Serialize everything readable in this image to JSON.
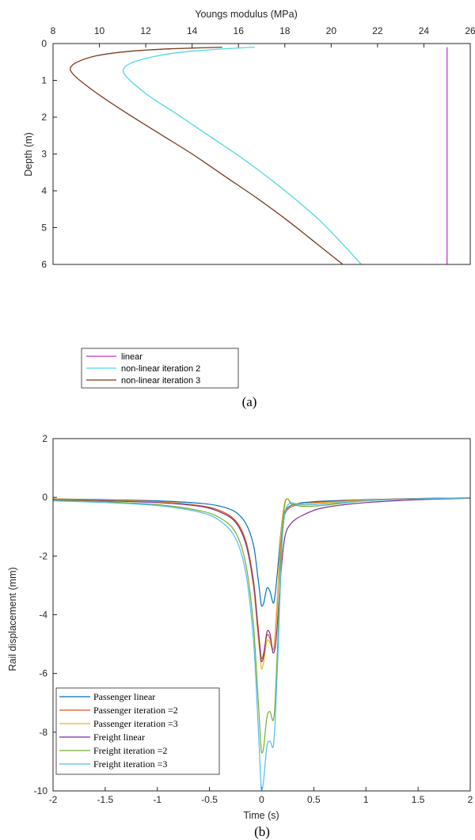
{
  "colors": {
    "linear": "#cc33cc",
    "iter2": "#4dd9e0",
    "iter3": "#7a3a1c",
    "passenger_linear": "#0072bd",
    "passenger_iter2": "#d95319",
    "passenger_iter3": "#edb120",
    "freight_linear": "#7e2f8e",
    "freight_iter2": "#77ac30",
    "freight_iter3": "#4dbeee"
  },
  "chart_data": [
    {
      "type": "line",
      "caption": "(a)",
      "title": "",
      "xlabel": "Youngs modulus (MPa)",
      "ylabel": "Depth (m)",
      "xlim": [
        8,
        26
      ],
      "ylim": [
        6,
        0
      ],
      "x_axis_position": "top",
      "y_axis_reversed": true,
      "x_ticks": [
        "8",
        "10",
        "12",
        "14",
        "16",
        "18",
        "20",
        "22",
        "24",
        "26"
      ],
      "y_ticks": [
        "0",
        "1",
        "2",
        "3",
        "4",
        "5",
        "6"
      ],
      "grid": false,
      "legend_position": "bottom-left",
      "series": [
        {
          "name": "linear",
          "color_key": "linear",
          "points": [
            [
              25,
              0.1
            ],
            [
              25,
              6.0
            ]
          ]
        },
        {
          "name": "non-linear iteration 2",
          "color_key": "iter2",
          "points": [
            [
              16.7,
              0.1
            ],
            [
              15.2,
              0.15
            ],
            [
              13.6,
              0.23
            ],
            [
              12.3,
              0.36
            ],
            [
              11.4,
              0.52
            ],
            [
              11.05,
              0.68
            ],
            [
              11.1,
              0.85
            ],
            [
              11.5,
              1.1
            ],
            [
              12.2,
              1.45
            ],
            [
              13.3,
              1.9
            ],
            [
              14.6,
              2.45
            ],
            [
              15.9,
              3.0
            ],
            [
              17.2,
              3.6
            ],
            [
              18.4,
              4.2
            ],
            [
              19.5,
              4.8
            ],
            [
              20.5,
              5.45
            ],
            [
              21.3,
              6.0
            ]
          ]
        },
        {
          "name": "non-linear iteration 3",
          "color_key": "iter3",
          "points": [
            [
              15.3,
              0.1
            ],
            [
              13.2,
              0.14
            ],
            [
              11.3,
              0.21
            ],
            [
              9.9,
              0.33
            ],
            [
              9.05,
              0.5
            ],
            [
              8.75,
              0.66
            ],
            [
              8.85,
              0.82
            ],
            [
              9.25,
              1.05
            ],
            [
              10.0,
              1.4
            ],
            [
              11.2,
              1.9
            ],
            [
              12.6,
              2.45
            ],
            [
              14.0,
              3.0
            ],
            [
              15.4,
              3.6
            ],
            [
              16.8,
              4.2
            ],
            [
              18.1,
              4.8
            ],
            [
              19.4,
              5.45
            ],
            [
              20.5,
              6.0
            ]
          ]
        }
      ]
    },
    {
      "type": "line",
      "caption": "(b)",
      "title": "",
      "xlabel": "Time (s)",
      "ylabel": "Rail displacement (mm)",
      "xlim": [
        -2,
        2
      ],
      "ylim": [
        -10,
        2
      ],
      "x_ticks": [
        "-2",
        "-1.5",
        "-1",
        "-0.5",
        "0",
        "0.5",
        "1",
        "1.5",
        "2"
      ],
      "y_ticks": [
        "2",
        "0",
        "-2",
        "-4",
        "-6",
        "-8",
        "-10"
      ],
      "grid": false,
      "legend_position": "bottom-left",
      "series": [
        {
          "name": "Passenger linear",
          "color_key": "passenger_linear",
          "points": [
            [
              -2,
              -0.05
            ],
            [
              -1.5,
              -0.08
            ],
            [
              -1,
              -0.12
            ],
            [
              -0.6,
              -0.2
            ],
            [
              -0.4,
              -0.3
            ],
            [
              -0.25,
              -0.5
            ],
            [
              -0.15,
              -0.9
            ],
            [
              -0.08,
              -1.6
            ],
            [
              -0.04,
              -2.6
            ],
            [
              -0.01,
              -3.5
            ],
            [
              0.0,
              -3.7
            ],
            [
              0.02,
              -3.6
            ],
            [
              0.05,
              -3.1
            ],
            [
              0.08,
              -3.2
            ],
            [
              0.11,
              -3.6
            ],
            [
              0.13,
              -3.3
            ],
            [
              0.16,
              -2.2
            ],
            [
              0.19,
              -1.0
            ],
            [
              0.22,
              -0.5
            ],
            [
              0.3,
              -0.25
            ],
            [
              0.5,
              -0.15
            ],
            [
              1,
              -0.08
            ],
            [
              1.5,
              -0.04
            ],
            [
              2,
              -0.02
            ]
          ]
        },
        {
          "name": "Passenger iteration =2",
          "color_key": "passenger_iter2",
          "points": [
            [
              -2,
              -0.05
            ],
            [
              -1.5,
              -0.1
            ],
            [
              -1,
              -0.15
            ],
            [
              -0.6,
              -0.28
            ],
            [
              -0.4,
              -0.45
            ],
            [
              -0.25,
              -0.8
            ],
            [
              -0.15,
              -1.5
            ],
            [
              -0.08,
              -2.8
            ],
            [
              -0.04,
              -4.2
            ],
            [
              -0.01,
              -5.3
            ],
            [
              0.0,
              -5.5
            ],
            [
              0.02,
              -5.3
            ],
            [
              0.05,
              -4.7
            ],
            [
              0.08,
              -4.8
            ],
            [
              0.11,
              -5.2
            ],
            [
              0.13,
              -4.7
            ],
            [
              0.16,
              -3.0
            ],
            [
              0.19,
              -1.3
            ],
            [
              0.22,
              -0.6
            ],
            [
              0.3,
              -0.3
            ],
            [
              0.5,
              -0.18
            ],
            [
              1,
              -0.09
            ],
            [
              1.5,
              -0.04
            ],
            [
              2,
              -0.02
            ]
          ]
        },
        {
          "name": "Passenger iteration =3",
          "color_key": "passenger_iter3",
          "points": [
            [
              -2,
              -0.05
            ],
            [
              -1.5,
              -0.1
            ],
            [
              -1,
              -0.16
            ],
            [
              -0.6,
              -0.3
            ],
            [
              -0.4,
              -0.5
            ],
            [
              -0.25,
              -0.85
            ],
            [
              -0.15,
              -1.6
            ],
            [
              -0.08,
              -3.0
            ],
            [
              -0.04,
              -4.5
            ],
            [
              -0.01,
              -5.6
            ],
            [
              0.0,
              -5.85
            ],
            [
              0.02,
              -5.6
            ],
            [
              0.05,
              -4.9
            ],
            [
              0.08,
              -4.95
            ],
            [
              0.11,
              -5.2
            ],
            [
              0.13,
              -4.6
            ],
            [
              0.16,
              -2.8
            ],
            [
              0.19,
              -1.0
            ],
            [
              0.22,
              -0.2
            ],
            [
              0.25,
              -0.05
            ],
            [
              0.3,
              -0.2
            ],
            [
              0.5,
              -0.2
            ],
            [
              1,
              -0.1
            ],
            [
              1.5,
              -0.05
            ],
            [
              2,
              -0.02
            ]
          ]
        },
        {
          "name": "Freight linear",
          "color_key": "freight_linear",
          "points": [
            [
              -2,
              -0.08
            ],
            [
              -1.5,
              -0.12
            ],
            [
              -1,
              -0.18
            ],
            [
              -0.6,
              -0.3
            ],
            [
              -0.4,
              -0.5
            ],
            [
              -0.25,
              -0.85
            ],
            [
              -0.15,
              -1.6
            ],
            [
              -0.08,
              -2.9
            ],
            [
              -0.04,
              -4.3
            ],
            [
              -0.01,
              -5.4
            ],
            [
              0.0,
              -5.6
            ],
            [
              0.02,
              -5.4
            ],
            [
              0.05,
              -4.6
            ],
            [
              0.08,
              -4.65
            ],
            [
              0.11,
              -5.3
            ],
            [
              0.14,
              -4.8
            ],
            [
              0.18,
              -2.8
            ],
            [
              0.22,
              -1.4
            ],
            [
              0.28,
              -0.9
            ],
            [
              0.4,
              -0.6
            ],
            [
              0.6,
              -0.35
            ],
            [
              1,
              -0.18
            ],
            [
              1.5,
              -0.08
            ],
            [
              2,
              -0.03
            ]
          ]
        },
        {
          "name": "Freight iteration =2",
          "color_key": "freight_iter2",
          "points": [
            [
              -2,
              -0.1
            ],
            [
              -1.5,
              -0.15
            ],
            [
              -1,
              -0.25
            ],
            [
              -0.6,
              -0.45
            ],
            [
              -0.4,
              -0.7
            ],
            [
              -0.25,
              -1.2
            ],
            [
              -0.15,
              -2.3
            ],
            [
              -0.08,
              -4.3
            ],
            [
              -0.04,
              -6.5
            ],
            [
              -0.01,
              -8.3
            ],
            [
              0.0,
              -8.7
            ],
            [
              0.02,
              -8.5
            ],
            [
              0.05,
              -7.5
            ],
            [
              0.08,
              -7.3
            ],
            [
              0.11,
              -7.6
            ],
            [
              0.13,
              -6.9
            ],
            [
              0.16,
              -4.4
            ],
            [
              0.19,
              -1.6
            ],
            [
              0.22,
              -0.3
            ],
            [
              0.25,
              -0.05
            ],
            [
              0.3,
              -0.25
            ],
            [
              0.5,
              -0.3
            ],
            [
              1,
              -0.12
            ],
            [
              1.5,
              -0.05
            ],
            [
              2,
              -0.02
            ]
          ]
        },
        {
          "name": "Freight iteration =3",
          "color_key": "freight_iter3",
          "points": [
            [
              -2,
              -0.12
            ],
            [
              -1.5,
              -0.18
            ],
            [
              -1,
              -0.28
            ],
            [
              -0.6,
              -0.5
            ],
            [
              -0.4,
              -0.8
            ],
            [
              -0.25,
              -1.4
            ],
            [
              -0.15,
              -2.6
            ],
            [
              -0.08,
              -4.8
            ],
            [
              -0.04,
              -7.3
            ],
            [
              -0.01,
              -9.5
            ],
            [
              0.0,
              -10.0
            ],
            [
              0.02,
              -9.6
            ],
            [
              0.05,
              -8.5
            ],
            [
              0.08,
              -8.3
            ],
            [
              0.11,
              -8.5
            ],
            [
              0.13,
              -7.6
            ],
            [
              0.16,
              -5.0
            ],
            [
              0.19,
              -2.0
            ],
            [
              0.22,
              -0.6
            ],
            [
              0.27,
              -0.2
            ],
            [
              0.35,
              -0.25
            ],
            [
              0.5,
              -0.25
            ],
            [
              1,
              -0.12
            ],
            [
              1.5,
              -0.05
            ],
            [
              2,
              -0.02
            ]
          ]
        }
      ]
    }
  ]
}
